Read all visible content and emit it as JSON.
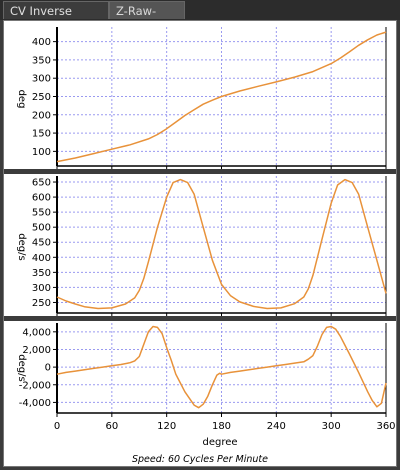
{
  "tabs": [
    {
      "label": "CV Inverse Crank",
      "active": true
    },
    {
      "label": "Z-Raw-Data",
      "active": false
    }
  ],
  "colors": {
    "curve": "#e8923a",
    "grid": "#9a9af0",
    "panel_separator": "#3c3c3c"
  },
  "footer": {
    "speed_label": "Speed: 60 Cycles Per Minute"
  },
  "chart_data": [
    {
      "type": "line",
      "title": "",
      "xlabel": "",
      "ylabel": "deg",
      "xlim": [
        0,
        360
      ],
      "ylim": [
        60,
        440
      ],
      "yticks": [
        "100",
        "150",
        "200",
        "250",
        "300",
        "350",
        "400"
      ],
      "ytick_values": [
        100,
        150,
        200,
        250,
        300,
        350,
        400
      ],
      "grid": true,
      "series": [
        {
          "x": [
            0,
            20,
            40,
            60,
            80,
            100,
            110,
            120,
            130,
            140,
            150,
            160,
            170,
            180,
            200,
            220,
            240,
            260,
            280,
            300,
            310,
            320,
            330,
            340,
            350,
            360
          ],
          "y": [
            72,
            82,
            94,
            106,
            118,
            134,
            146,
            162,
            180,
            198,
            214,
            229,
            240,
            250,
            265,
            278,
            290,
            303,
            318,
            340,
            355,
            372,
            390,
            405,
            418,
            426
          ]
        }
      ]
    },
    {
      "type": "line",
      "title": "",
      "xlabel": "",
      "ylabel": "deg/s",
      "xlim": [
        0,
        360
      ],
      "ylim": [
        215,
        670
      ],
      "yticks": [
        "250",
        "300",
        "350",
        "400",
        "450",
        "500",
        "550",
        "600",
        "650"
      ],
      "ytick_values": [
        250,
        300,
        350,
        400,
        450,
        500,
        550,
        600,
        650
      ],
      "grid": true,
      "series": [
        {
          "x": [
            0,
            10,
            20,
            30,
            45,
            60,
            75,
            85,
            90,
            95,
            100,
            110,
            120,
            127,
            135,
            143,
            150,
            160,
            170,
            180,
            190,
            200,
            215,
            230,
            245,
            260,
            270,
            275,
            280,
            290,
            300,
            307,
            315,
            323,
            330,
            340,
            350,
            360
          ],
          "y": [
            268,
            255,
            245,
            236,
            230,
            232,
            245,
            265,
            290,
            330,
            385,
            500,
            600,
            648,
            658,
            648,
            610,
            500,
            390,
            310,
            272,
            252,
            237,
            230,
            232,
            246,
            268,
            295,
            340,
            460,
            580,
            640,
            658,
            648,
            610,
            500,
            390,
            280
          ]
        }
      ]
    },
    {
      "type": "line",
      "title": "",
      "xlabel": "degree",
      "ylabel": "deg/s",
      "xlim": [
        0,
        360
      ],
      "ylim": [
        -5200,
        5000
      ],
      "yticks": [
        "4,000",
        "2,000",
        "0",
        "-2,000",
        "-4,000"
      ],
      "ytick_values": [
        4000,
        2000,
        0,
        -2000,
        -4000
      ],
      "xticks": [
        "0",
        "60",
        "120",
        "180",
        "240",
        "300",
        "360"
      ],
      "xtick_values": [
        0,
        60,
        120,
        180,
        240,
        300,
        360
      ],
      "grid": true,
      "series": [
        {
          "x": [
            0,
            10,
            20,
            30,
            40,
            50,
            60,
            70,
            80,
            85,
            90,
            95,
            100,
            105,
            110,
            115,
            120,
            125,
            130,
            140,
            150,
            155,
            160,
            165,
            170,
            175,
            178,
            180,
            190,
            200,
            210,
            220,
            230,
            240,
            250,
            260,
            270,
            275,
            280,
            285,
            290,
            295,
            300,
            305,
            310,
            320,
            330,
            340,
            345,
            350,
            355,
            360
          ],
          "y": [
            -800,
            -600,
            -450,
            -300,
            -150,
            0,
            150,
            300,
            500,
            700,
            1200,
            2600,
            4000,
            4600,
            4500,
            3800,
            2200,
            800,
            -800,
            -2800,
            -4300,
            -4600,
            -4200,
            -3300,
            -2000,
            -900,
            -700,
            -800,
            -600,
            -450,
            -300,
            -150,
            0,
            150,
            300,
            450,
            600,
            900,
            1300,
            2400,
            3700,
            4500,
            4600,
            4300,
            3500,
            1500,
            -600,
            -2800,
            -3800,
            -4500,
            -4100,
            -1800
          ]
        }
      ]
    }
  ]
}
